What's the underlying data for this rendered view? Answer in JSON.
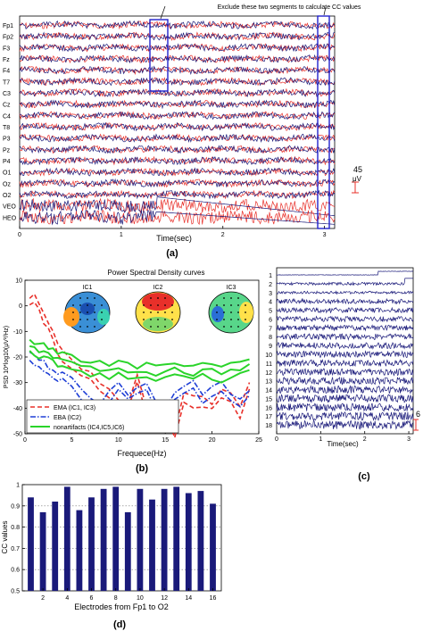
{
  "colors": {
    "red_trace": "#e8302a",
    "blue_trace": "#1a1a7a",
    "box": "#2222cc",
    "ema": "#e8302a",
    "eba": "#1f3fd6",
    "nonartifacts": "#2ad42a",
    "bar": "#1a1a7a"
  },
  "chart_data": [
    {
      "type": "line",
      "panel_label": "(a)",
      "annotation": "Exclude these two segments to calculate CC values",
      "channels": [
        "Fp1",
        "Fp2",
        "F3",
        "Fz",
        "F4",
        "T7",
        "C3",
        "Cz",
        "C4",
        "T8",
        "P3",
        "Pz",
        "P4",
        "O1",
        "Oz",
        "O2",
        "VEO",
        "HEO"
      ],
      "xlabel": "Time(sec)",
      "xticks": [
        0,
        1,
        2,
        3
      ],
      "xlim": [
        0,
        3.1
      ],
      "scale_value": "45",
      "scale_unit": "μV",
      "excluded_segments": [
        [
          1.3,
          1.5
        ],
        [
          2.95,
          3.1
        ]
      ]
    },
    {
      "type": "line",
      "panel_label": "(b)",
      "title": "Power Spectral Density curves",
      "xlabel": "Frequece(Hz)",
      "ylabel": "PSD  10*log10(μV²/Hz)",
      "xlim": [
        0,
        25
      ],
      "ylim": [
        -50,
        10
      ],
      "xticks": [
        0,
        5,
        10,
        15,
        20,
        25
      ],
      "yticks": [
        10,
        0,
        -10,
        -20,
        -30,
        -40,
        -50
      ],
      "topomap_labels": [
        "IC1",
        "IC2",
        "IC3"
      ],
      "legend_position": "bottom-left",
      "series": [
        {
          "name": "EMA (IC1, IC3)",
          "x": [
            0.5,
            1,
            1.5,
            2,
            2.5,
            3,
            3.5,
            4,
            5,
            6,
            7,
            8,
            9,
            10,
            11,
            12,
            13,
            14,
            15,
            16,
            17,
            18,
            19,
            20,
            21,
            22,
            23,
            24
          ],
          "y": [
            3,
            4,
            1,
            -3,
            -6,
            -10,
            -15,
            -18,
            -22,
            -24,
            -26,
            -30,
            -33,
            -36,
            -38,
            -26,
            -40,
            -44,
            -38,
            -48,
            -34,
            -36,
            -36,
            -38,
            -33,
            -34,
            -40,
            -30
          ]
        },
        {
          "name": "EBA (IC2)",
          "x": [
            0.5,
            1,
            1.5,
            2,
            2.5,
            3,
            3.5,
            4,
            5,
            6,
            7,
            8,
            9,
            10,
            11,
            12,
            13,
            14,
            15,
            16,
            17,
            18,
            19,
            20,
            21,
            22,
            23,
            24
          ],
          "y": [
            -19,
            -20,
            -21,
            -22,
            -24,
            -26,
            -27,
            -26,
            -29,
            -33,
            -36,
            -38,
            -34,
            -30,
            -34,
            -32,
            -30,
            -37,
            -40,
            -34,
            -31,
            -30,
            -35,
            -32,
            -30,
            -34,
            -36,
            -33
          ]
        },
        {
          "name": "nonartifacts (IC4,IC5,IC6)",
          "x": [
            0.5,
            1,
            1.5,
            2,
            2.5,
            3,
            3.5,
            4,
            5,
            6,
            7,
            8,
            9,
            10,
            11,
            12,
            13,
            14,
            15,
            16,
            17,
            18,
            19,
            20,
            21,
            22,
            23,
            24
          ],
          "y": [
            -13,
            -14,
            -15,
            -15,
            -16,
            -17,
            -18,
            -19,
            -20,
            -21,
            -22,
            -22,
            -23,
            -22,
            -23,
            -24,
            -23,
            -24,
            -23,
            -22,
            -23,
            -24,
            -22,
            -23,
            -24,
            -23,
            -22,
            -21
          ]
        }
      ]
    },
    {
      "type": "line",
      "panel_label": "(c)",
      "components": [
        "1",
        "2",
        "3",
        "4",
        "5",
        "6",
        "7",
        "8",
        "9",
        "10",
        "11",
        "12",
        "13",
        "14",
        "15",
        "16",
        "17",
        "18"
      ],
      "xlabel": "Time(sec)",
      "xticks": [
        0,
        1,
        2,
        3
      ],
      "xlim": [
        0,
        3.1
      ],
      "scale_value": "6"
    },
    {
      "type": "bar",
      "panel_label": "(d)",
      "xlabel": "Electrodes from Fp1 to O2",
      "ylabel": "CC values",
      "categories": [
        1,
        2,
        3,
        4,
        5,
        6,
        7,
        8,
        9,
        10,
        11,
        12,
        13,
        14,
        15,
        16
      ],
      "xticks": [
        2,
        4,
        6,
        8,
        10,
        12,
        14,
        16
      ],
      "values": [
        0.94,
        0.87,
        0.92,
        0.99,
        0.88,
        0.94,
        0.98,
        0.99,
        0.87,
        0.98,
        0.93,
        0.98,
        0.99,
        0.96,
        0.97,
        0.91
      ],
      "ylim": [
        0.5,
        1.0
      ],
      "yticks": [
        0.5,
        0.6,
        0.7,
        0.8,
        0.9,
        1
      ],
      "grid": true
    }
  ]
}
